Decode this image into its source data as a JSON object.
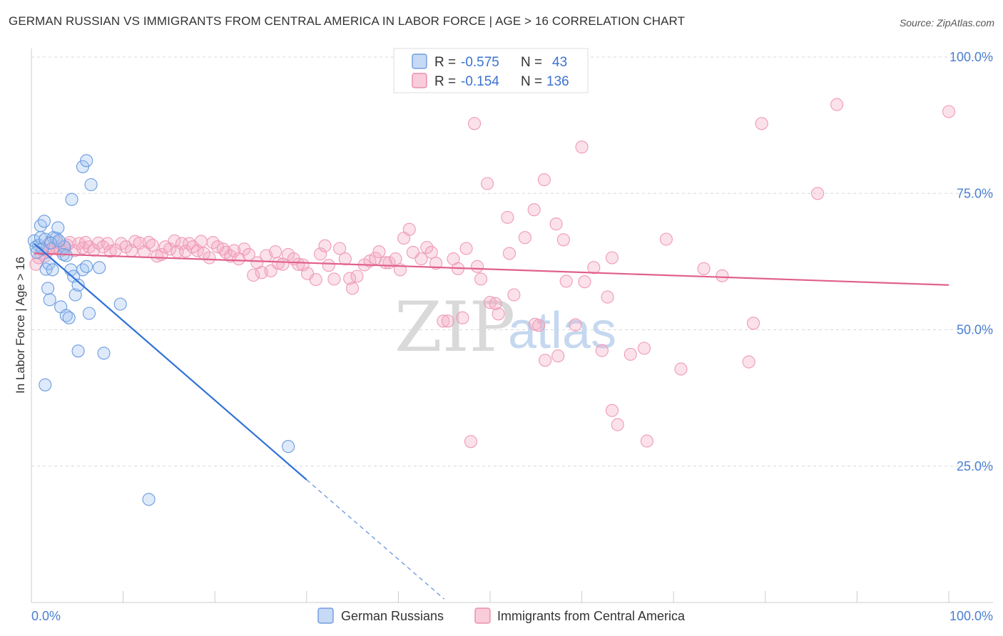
{
  "title": "GERMAN RUSSIAN VS IMMIGRANTS FROM CENTRAL AMERICA IN LABOR FORCE | AGE > 16 CORRELATION CHART",
  "source": "Source: ZipAtlas.com",
  "watermark": {
    "zip": "ZIP",
    "atlas": "atlas"
  },
  "legend_box": {
    "rows": [
      {
        "r_label": "R =",
        "r_value": "-0.575",
        "n_label": "N =",
        "n_value": "43",
        "color": "#5b8fd9"
      },
      {
        "r_label": "R =",
        "r_value": "-0.154",
        "n_label": "N =",
        "n_value": "136",
        "color": "#e87ea1"
      }
    ]
  },
  "bottom_legend": [
    "German Russians",
    "Immigrants from Central America"
  ],
  "chart_data": {
    "type": "scatter",
    "title": "GERMAN RUSSIAN VS IMMIGRANTS FROM CENTRAL AMERICA IN LABOR FORCE | AGE > 16 CORRELATION CHART",
    "xlabel": "",
    "ylabel": "In Labor Force | Age > 16",
    "xlim": [
      0,
      100
    ],
    "ylim": [
      0,
      100
    ],
    "x_tick_labels": [
      "0.0%",
      "100.0%"
    ],
    "y_ticks": [
      25,
      50,
      75,
      100
    ],
    "y_tick_labels": [
      "25.0%",
      "50.0%",
      "75.0%",
      "100.0%"
    ],
    "grid": true,
    "legend_position": "bottom",
    "colors": {
      "German Russians": "#5b8fd9",
      "Immigrants from Central America": "#e87ea1"
    },
    "series": [
      {
        "name": "German Russians",
        "R": -0.575,
        "N": 43,
        "trend": {
          "x0": 0.3,
          "y0": 65.8,
          "x1": 30,
          "y1": 22.5,
          "dashed_to_x": 45
        },
        "points": [
          [
            0.3,
            66.3
          ],
          [
            0.5,
            65.2
          ],
          [
            0.8,
            65.5
          ],
          [
            1.0,
            66.9
          ],
          [
            1.2,
            64.8
          ],
          [
            1.0,
            69.1
          ],
          [
            1.4,
            69.9
          ],
          [
            1.5,
            66.6
          ],
          [
            1.6,
            61.1
          ],
          [
            1.8,
            57.6
          ],
          [
            2.0,
            55.5
          ],
          [
            1.9,
            62.1
          ],
          [
            2.3,
            61.0
          ],
          [
            2.4,
            66.9
          ],
          [
            2.7,
            66.8
          ],
          [
            2.9,
            68.7
          ],
          [
            3.2,
            54.2
          ],
          [
            3.6,
            65.2
          ],
          [
            3.5,
            63.8
          ],
          [
            3.8,
            63.6
          ],
          [
            3.8,
            52.6
          ],
          [
            4.1,
            52.2
          ],
          [
            4.3,
            61.0
          ],
          [
            4.4,
            73.9
          ],
          [
            4.6,
            59.8
          ],
          [
            4.8,
            56.4
          ],
          [
            5.1,
            58.2
          ],
          [
            5.1,
            46.1
          ],
          [
            5.6,
            79.9
          ],
          [
            5.6,
            61.0
          ],
          [
            6.0,
            81.0
          ],
          [
            6.0,
            61.6
          ],
          [
            6.3,
            53.0
          ],
          [
            6.5,
            76.6
          ],
          [
            7.4,
            61.4
          ],
          [
            7.9,
            45.7
          ],
          [
            9.7,
            54.7
          ],
          [
            1.5,
            39.9
          ],
          [
            12.8,
            18.9
          ],
          [
            28.0,
            28.6
          ],
          [
            0.6,
            64.2
          ],
          [
            2.1,
            65.9
          ],
          [
            3.0,
            66.3
          ]
        ]
      },
      {
        "name": "Immigrants from Central America",
        "R": -0.154,
        "N": 136,
        "trend": {
          "x0": 0.3,
          "y0": 64.0,
          "x1": 100,
          "y1": 58.2
        },
        "points": [
          [
            0.5,
            62.0
          ],
          [
            0.8,
            63.2
          ],
          [
            1.0,
            64.0
          ],
          [
            1.2,
            65.0
          ],
          [
            1.5,
            63.5
          ],
          [
            1.8,
            64.5
          ],
          [
            2.0,
            66.0
          ],
          [
            2.3,
            65.0
          ],
          [
            2.6,
            65.2
          ],
          [
            2.9,
            66.0
          ],
          [
            3.2,
            64.5
          ],
          [
            3.6,
            64.8
          ],
          [
            3.9,
            65.5
          ],
          [
            4.2,
            66.0
          ],
          [
            4.7,
            64.5
          ],
          [
            5.2,
            65.8
          ],
          [
            5.6,
            65.0
          ],
          [
            5.9,
            66.0
          ],
          [
            6.3,
            65.2
          ],
          [
            6.8,
            64.6
          ],
          [
            7.3,
            65.9
          ],
          [
            7.8,
            65.2
          ],
          [
            8.3,
            65.8
          ],
          [
            8.6,
            64.4
          ],
          [
            9.2,
            64.6
          ],
          [
            9.8,
            65.8
          ],
          [
            10.3,
            65.2
          ],
          [
            10.9,
            64.5
          ],
          [
            11.3,
            66.2
          ],
          [
            11.8,
            65.9
          ],
          [
            12.3,
            64.3
          ],
          [
            12.8,
            66.0
          ],
          [
            13.2,
            65.5
          ],
          [
            13.7,
            63.5
          ],
          [
            14.2,
            63.8
          ],
          [
            14.6,
            65.2
          ],
          [
            15.1,
            64.8
          ],
          [
            15.6,
            66.3
          ],
          [
            15.9,
            64.3
          ],
          [
            16.4,
            65.8
          ],
          [
            16.8,
            64.4
          ],
          [
            17.2,
            65.8
          ],
          [
            17.6,
            65.2
          ],
          [
            18.1,
            64.5
          ],
          [
            18.5,
            66.2
          ],
          [
            18.8,
            64.0
          ],
          [
            19.4,
            63.2
          ],
          [
            19.8,
            66.0
          ],
          [
            20.3,
            65.2
          ],
          [
            20.9,
            64.8
          ],
          [
            21.2,
            64.2
          ],
          [
            21.7,
            63.5
          ],
          [
            22.1,
            64.5
          ],
          [
            22.6,
            63.0
          ],
          [
            23.2,
            64.8
          ],
          [
            23.7,
            63.8
          ],
          [
            24.2,
            60.0
          ],
          [
            24.6,
            62.3
          ],
          [
            25.1,
            60.5
          ],
          [
            25.6,
            63.6
          ],
          [
            26.1,
            60.8
          ],
          [
            26.6,
            64.3
          ],
          [
            26.9,
            62.2
          ],
          [
            27.4,
            62.0
          ],
          [
            28.0,
            63.8
          ],
          [
            28.6,
            63.0
          ],
          [
            29.1,
            62.0
          ],
          [
            29.6,
            61.9
          ],
          [
            30.1,
            60.3
          ],
          [
            31.0,
            59.2
          ],
          [
            31.5,
            63.9
          ],
          [
            32.0,
            65.4
          ],
          [
            32.4,
            61.8
          ],
          [
            33.0,
            59.3
          ],
          [
            33.6,
            64.9
          ],
          [
            34.2,
            63.0
          ],
          [
            34.7,
            59.4
          ],
          [
            35.0,
            57.6
          ],
          [
            35.5,
            59.8
          ],
          [
            36.3,
            61.9
          ],
          [
            36.9,
            62.6
          ],
          [
            37.5,
            63.1
          ],
          [
            37.9,
            64.3
          ],
          [
            38.6,
            62.3
          ],
          [
            39.0,
            62.3
          ],
          [
            39.7,
            63.0
          ],
          [
            40.2,
            61.0
          ],
          [
            40.6,
            66.8
          ],
          [
            41.2,
            68.4
          ],
          [
            41.6,
            64.2
          ],
          [
            42.5,
            63.0
          ],
          [
            43.1,
            65.1
          ],
          [
            43.6,
            64.2
          ],
          [
            44.1,
            62.2
          ],
          [
            44.9,
            51.6
          ],
          [
            45.4,
            51.6
          ],
          [
            46.0,
            63.0
          ],
          [
            46.5,
            61.2
          ],
          [
            47.0,
            52.2
          ],
          [
            47.4,
            64.9
          ],
          [
            47.9,
            29.5
          ],
          [
            48.3,
            87.8
          ],
          [
            48.6,
            61.6
          ],
          [
            49.0,
            59.3
          ],
          [
            49.7,
            76.8
          ],
          [
            50.0,
            55.0
          ],
          [
            50.6,
            54.8
          ],
          [
            50.9,
            52.9
          ],
          [
            51.9,
            70.6
          ],
          [
            52.1,
            64.0
          ],
          [
            52.6,
            56.4
          ],
          [
            53.8,
            66.9
          ],
          [
            54.8,
            72.0
          ],
          [
            54.9,
            51.0
          ],
          [
            55.3,
            50.8
          ],
          [
            55.9,
            77.5
          ],
          [
            56.0,
            44.4
          ],
          [
            57.2,
            69.4
          ],
          [
            57.4,
            45.2
          ],
          [
            58.0,
            66.5
          ],
          [
            58.3,
            58.9
          ],
          [
            59.3,
            50.9
          ],
          [
            60.0,
            83.5
          ],
          [
            60.3,
            58.8
          ],
          [
            61.3,
            61.4
          ],
          [
            62.2,
            46.2
          ],
          [
            62.8,
            56.0
          ],
          [
            63.3,
            63.2
          ],
          [
            63.3,
            35.2
          ],
          [
            63.9,
            32.6
          ],
          [
            65.3,
            45.5
          ],
          [
            66.8,
            46.6
          ],
          [
            67.1,
            29.6
          ],
          [
            69.2,
            66.6
          ],
          [
            70.8,
            42.8
          ],
          [
            73.3,
            61.2
          ],
          [
            75.3,
            59.9
          ],
          [
            78.2,
            44.1
          ],
          [
            78.7,
            51.2
          ],
          [
            79.6,
            87.8
          ],
          [
            85.7,
            75.0
          ],
          [
            87.8,
            91.3
          ],
          [
            100.0,
            90.0
          ]
        ]
      }
    ]
  }
}
